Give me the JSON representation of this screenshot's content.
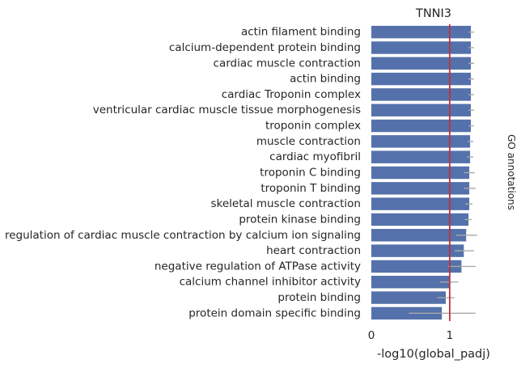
{
  "chart_data": {
    "type": "bar",
    "orientation": "horizontal",
    "title": "TNNI3",
    "xlabel": "-log10(global_padj)",
    "side_label": "GO annotations",
    "xlim": [
      0,
      1.6
    ],
    "xticks": [
      0,
      1
    ],
    "grid": false,
    "categories": [
      "actin filament binding",
      "calcium-dependent protein binding",
      "cardiac muscle contraction",
      "actin binding",
      "cardiac Troponin complex",
      "ventricular cardiac muscle tissue morphogenesis",
      "troponin complex",
      "muscle contraction",
      "cardiac myofibril",
      "troponin C binding",
      "troponin T binding",
      "skeletal muscle contraction",
      "protein kinase binding",
      "regulation of cardiac muscle contraction by calcium ion signaling",
      "heart contraction",
      "negative regulation of ATPase activity",
      "calcium channel inhibitor activity",
      "protein binding",
      "protein domain specific binding"
    ],
    "values": [
      1.27,
      1.27,
      1.27,
      1.27,
      1.27,
      1.27,
      1.27,
      1.26,
      1.26,
      1.25,
      1.25,
      1.25,
      1.24,
      1.21,
      1.18,
      1.15,
      1.0,
      0.95,
      0.9
    ],
    "error_low": [
      1.24,
      1.24,
      1.24,
      1.24,
      1.24,
      1.24,
      1.24,
      1.23,
      1.22,
      1.18,
      1.18,
      1.2,
      1.19,
      1.08,
      1.06,
      0.98,
      0.88,
      0.84,
      0.48
    ],
    "error_high": [
      1.31,
      1.31,
      1.31,
      1.31,
      1.31,
      1.31,
      1.31,
      1.3,
      1.3,
      1.32,
      1.33,
      1.29,
      1.28,
      1.35,
      1.31,
      1.33,
      1.11,
      1.06,
      1.33
    ],
    "reference_line": 1.0,
    "colors": {
      "bar": "#5471ab",
      "reference_line": "#c0323c",
      "error_bar": "#aaaaaa"
    }
  }
}
